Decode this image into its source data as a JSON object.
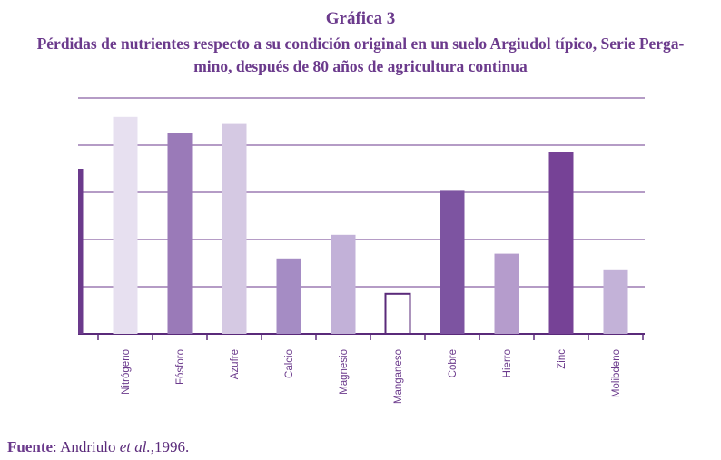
{
  "header": {
    "number": "Gráfica 3",
    "title_line1": "Pérdidas de nutrientes respecto a su condición original en un suelo Argiudol típico, Serie Perga-",
    "title_line2": "mino, después de 80 años de agricultura continua"
  },
  "chart_data": {
    "type": "bar",
    "title": "Pérdidas de nutrientes respecto a su condición original en un suelo Argiudol típico, Serie Pergamino, después de 80 años de agricultura continua",
    "xlabel": "",
    "ylabel": "",
    "ylim": [
      0,
      100
    ],
    "grid": true,
    "yticks_shown": false,
    "categories": [
      "",
      "Nitrógeno",
      "Fósforo",
      "Azufre",
      "Calcio",
      "Magnesio",
      "Manganeso",
      "Cobre",
      "Hierro",
      "Zinc",
      "Molibdeno"
    ],
    "values": [
      70,
      92,
      85,
      89,
      32,
      42,
      17,
      61,
      34,
      77,
      27
    ],
    "colors": [
      "#6b3a8c",
      "#e7e0f0",
      "#9a7ab8",
      "#d5c9e3",
      "#a58cc4",
      "#c2b1d8",
      "#ffffff",
      "#7d54a1",
      "#b59ccc",
      "#764296",
      "#c3b2d8"
    ],
    "outline_color": "#5a2a7a"
  },
  "source": {
    "label": "Fuente",
    "text": ": Andriulo ",
    "etal": "et al.",
    "year": ",1996."
  }
}
